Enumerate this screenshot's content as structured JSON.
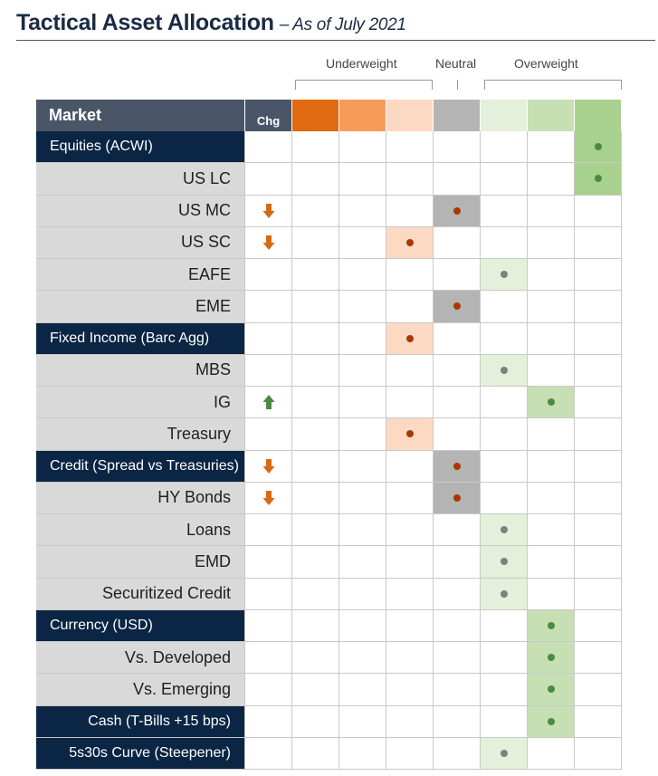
{
  "header": {
    "title": "Tactical Asset Allocation",
    "subtitle": "– As of July 2021"
  },
  "scale": {
    "underweight_label": "Underweight",
    "neutral_label": "Neutral",
    "overweight_label": "Overweight",
    "column_colors": [
      "#e06a12",
      "#f79b5a",
      "#fcd9c3",
      "#b4b4b4",
      "#e4f0d9",
      "#c6e0b4",
      "#a9d18e"
    ]
  },
  "table": {
    "market_header": "Market",
    "chg_header": "Chg",
    "rows": [
      {
        "label": "Equities  (ACWI)",
        "type": "category",
        "align": "left",
        "chg": "",
        "position": 6
      },
      {
        "label": "US LC",
        "type": "sub",
        "chg": "",
        "position": 6
      },
      {
        "label": "US MC",
        "type": "sub",
        "chg": "down",
        "position": 3
      },
      {
        "label": "US SC",
        "type": "sub",
        "chg": "down",
        "position": 2
      },
      {
        "label": "EAFE",
        "type": "sub",
        "chg": "",
        "position": 4
      },
      {
        "label": "EME",
        "type": "sub",
        "chg": "",
        "position": 3
      },
      {
        "label": "Fixed Income (Barc Agg)",
        "type": "category",
        "align": "left",
        "chg": "",
        "position": 2
      },
      {
        "label": "MBS",
        "type": "sub",
        "chg": "",
        "position": 4
      },
      {
        "label": "IG",
        "type": "sub",
        "chg": "up",
        "position": 5
      },
      {
        "label": "Treasury",
        "type": "sub",
        "chg": "",
        "position": 2
      },
      {
        "label": "Credit (Spread vs Treasuries)",
        "type": "category",
        "align": "left",
        "chg": "down",
        "position": 3
      },
      {
        "label": "HY Bonds",
        "type": "sub",
        "chg": "down",
        "position": 3
      },
      {
        "label": "Loans",
        "type": "sub",
        "chg": "",
        "position": 4
      },
      {
        "label": "EMD",
        "type": "sub",
        "chg": "",
        "position": 4
      },
      {
        "label": "Securitized Credit",
        "type": "sub",
        "chg": "",
        "position": 4
      },
      {
        "label": "Currency (USD)",
        "type": "category",
        "align": "left",
        "chg": "",
        "position": 5
      },
      {
        "label": "Vs. Developed",
        "type": "sub",
        "chg": "",
        "position": 5
      },
      {
        "label": "Vs. Emerging",
        "type": "sub",
        "chg": "",
        "position": 5
      },
      {
        "label": "Cash (T-Bills +15 bps)",
        "type": "category",
        "align": "right",
        "chg": "",
        "position": 5
      },
      {
        "label": "5s30s Curve (Steepener)",
        "type": "category",
        "align": "right",
        "chg": "",
        "position": 4
      }
    ]
  },
  "icons": {
    "down": "down-arrow-icon",
    "up": "up-arrow-icon",
    "down_color": "#d46a14",
    "up_color": "#4e8a3e",
    "dot_colors": [
      "#a53a00",
      "#a53a00",
      "#a53a00",
      "#a53a00",
      "#7f7f7f",
      "#4e8a3e",
      "#4e8a3e",
      "#4e8a3e"
    ]
  }
}
